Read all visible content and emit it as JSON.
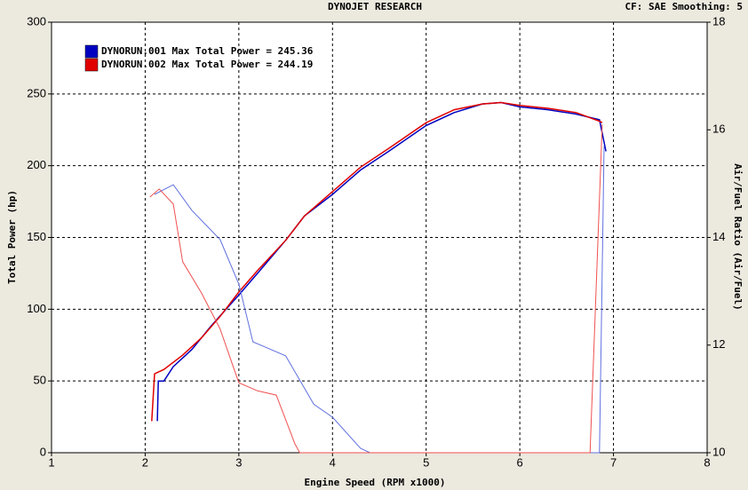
{
  "chart_data": {
    "type": "line",
    "title": "DYNOJET RESEARCH",
    "subtitle": "CF: SAE  Smoothing: 5",
    "x_label": "Engine Speed (RPM x1000)",
    "y_label": "Total Power (hp)",
    "y2_label": "Air/Fuel Ratio (Air/Fuel)",
    "xlim": [
      1,
      8
    ],
    "xticks": [
      1,
      2,
      3,
      4,
      5,
      6,
      7,
      8
    ],
    "ylim": [
      0,
      300
    ],
    "yticks": [
      0,
      50,
      100,
      150,
      200,
      250,
      300
    ],
    "y2lim": [
      10,
      18
    ],
    "y2ticks": [
      10,
      12,
      14,
      16,
      18
    ],
    "grid": true,
    "series": [
      {
        "name": "DYNORUN.001 Max Total Power = 245.36",
        "color": "#0000c0",
        "x": [
          2.13,
          2.14,
          2.2,
          2.3,
          2.5,
          2.7,
          3.0,
          3.2,
          3.5,
          3.7,
          4.0,
          4.3,
          4.6,
          5.0,
          5.3,
          5.6,
          5.8,
          6.0,
          6.3,
          6.6,
          6.85,
          6.92
        ],
        "values": [
          22,
          50,
          50,
          60,
          72,
          88,
          110,
          125,
          148,
          165,
          180,
          197,
          210,
          228,
          237,
          243,
          244,
          241,
          239,
          236,
          232,
          210
        ]
      },
      {
        "name": "DYNORUN.002 Max Total Power = 244.19",
        "color": "#e00000",
        "x": [
          2.07,
          2.1,
          2.2,
          2.4,
          2.6,
          2.8,
          3.0,
          3.2,
          3.5,
          3.7,
          4.0,
          4.3,
          4.6,
          5.0,
          5.3,
          5.6,
          5.8,
          6.0,
          6.3,
          6.6,
          6.85,
          6.88
        ],
        "values": [
          22,
          55,
          58,
          68,
          80,
          95,
          112,
          127,
          148,
          165,
          182,
          199,
          212,
          230,
          239,
          243,
          244,
          242,
          240,
          237,
          231,
          230
        ]
      },
      {
        "axis": "y2",
        "color": "#6070e0",
        "x": [
          2.1,
          2.3,
          2.5,
          2.8,
          3.0,
          3.15,
          3.3,
          3.5,
          3.8,
          4.0,
          4.3,
          4.4,
          6.85,
          6.9
        ],
        "values": [
          14.8,
          14.98,
          14.5,
          13.96,
          13.13,
          12.06,
          11.95,
          11.8,
          10.9,
          10.66,
          10.08,
          10,
          10,
          15.7
        ]
      },
      {
        "axis": "y2",
        "color": "#f05050",
        "x": [
          2.05,
          2.15,
          2.3,
          2.4,
          2.6,
          2.8,
          2.9,
          3.0,
          3.2,
          3.4,
          3.6,
          3.65,
          6.75,
          6.88
        ],
        "values": [
          14.75,
          14.9,
          14.62,
          13.55,
          12.97,
          12.3,
          11.8,
          11.3,
          11.15,
          11.07,
          10.16,
          10,
          10,
          16.1
        ]
      }
    ]
  }
}
